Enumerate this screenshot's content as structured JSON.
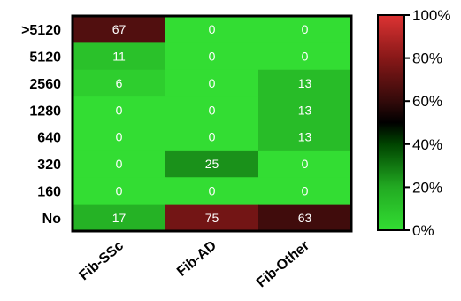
{
  "chart_data": {
    "type": "heatmap",
    "title": "",
    "xlabel": "",
    "ylabel": "",
    "rows": [
      ">5120",
      "5120",
      "2560",
      "1280",
      "640",
      "320",
      "160",
      "No"
    ],
    "columns": [
      "Fib-SSc",
      "Fib-AD",
      "Fib-Other"
    ],
    "values": [
      [
        67,
        0,
        0
      ],
      [
        11,
        0,
        0
      ],
      [
        6,
        0,
        13
      ],
      [
        0,
        0,
        13
      ],
      [
        0,
        0,
        13
      ],
      [
        0,
        25,
        0
      ],
      [
        0,
        0,
        0
      ],
      [
        17,
        75,
        63
      ]
    ],
    "colorscale": {
      "min": 0,
      "max": 100,
      "unit": "%",
      "stops": [
        {
          "value": 0,
          "color": "#33dd33"
        },
        {
          "value": 20,
          "color": "#22aa22"
        },
        {
          "value": 40,
          "color": "#004400"
        },
        {
          "value": 50,
          "color": "#000000"
        },
        {
          "value": 60,
          "color": "#330a0a"
        },
        {
          "value": 80,
          "color": "#881818"
        },
        {
          "value": 100,
          "color": "#dd3333"
        }
      ],
      "tick_labels": [
        "0%",
        "20%",
        "40%",
        "60%",
        "80%",
        "100%"
      ],
      "tick_values": [
        0,
        20,
        40,
        60,
        80,
        100
      ]
    },
    "legend": "right",
    "grid": false
  }
}
